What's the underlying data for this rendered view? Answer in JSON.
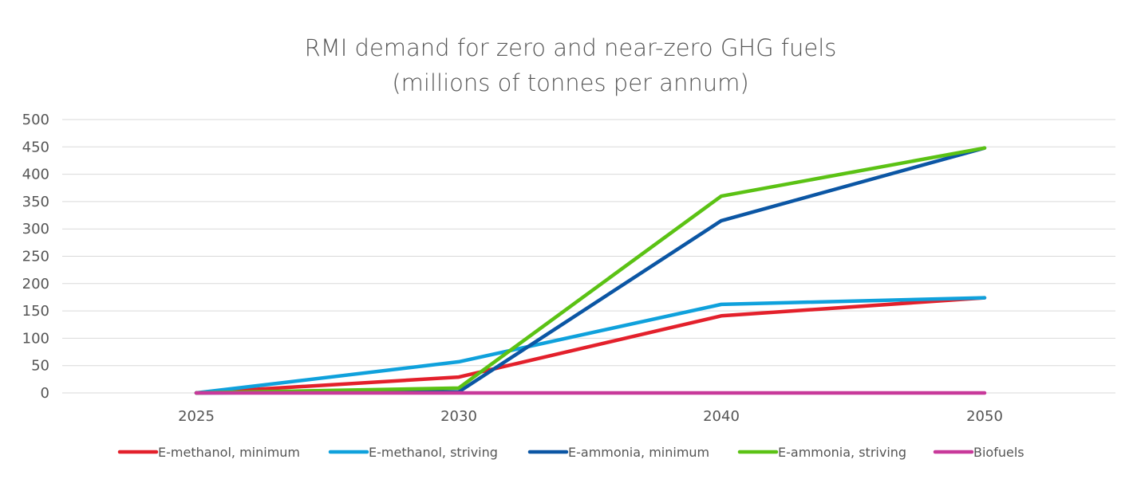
{
  "chart_data": {
    "type": "line",
    "title": "RMI demand for zero and near-zero GHG fuels",
    "subtitle": "(millions of tonnes per annum)",
    "xlabel": "",
    "ylabel": "",
    "categories": [
      "2025",
      "2030",
      "2040",
      "2050"
    ],
    "ylim": [
      0,
      500
    ],
    "yticks": [
      0,
      50,
      100,
      150,
      200,
      250,
      300,
      350,
      400,
      450,
      500
    ],
    "grid": true,
    "legend_position": "bottom",
    "series": [
      {
        "name": "E-methanol, minimum",
        "color": "#e3202b",
        "values": [
          0,
          29,
          141,
          174
        ]
      },
      {
        "name": "E-methanol, striving",
        "color": "#0fa1dc",
        "values": [
          0,
          57,
          162,
          174
        ]
      },
      {
        "name": "E-ammonia, minimum",
        "color": "#0b56a4",
        "values": [
          0,
          2,
          315,
          448
        ]
      },
      {
        "name": "E-ammonia, striving",
        "color": "#5bc214",
        "values": [
          0,
          9,
          360,
          448
        ]
      },
      {
        "name": "Biofuels",
        "color": "#c8399a",
        "values": [
          0,
          0,
          0,
          0
        ]
      }
    ]
  }
}
